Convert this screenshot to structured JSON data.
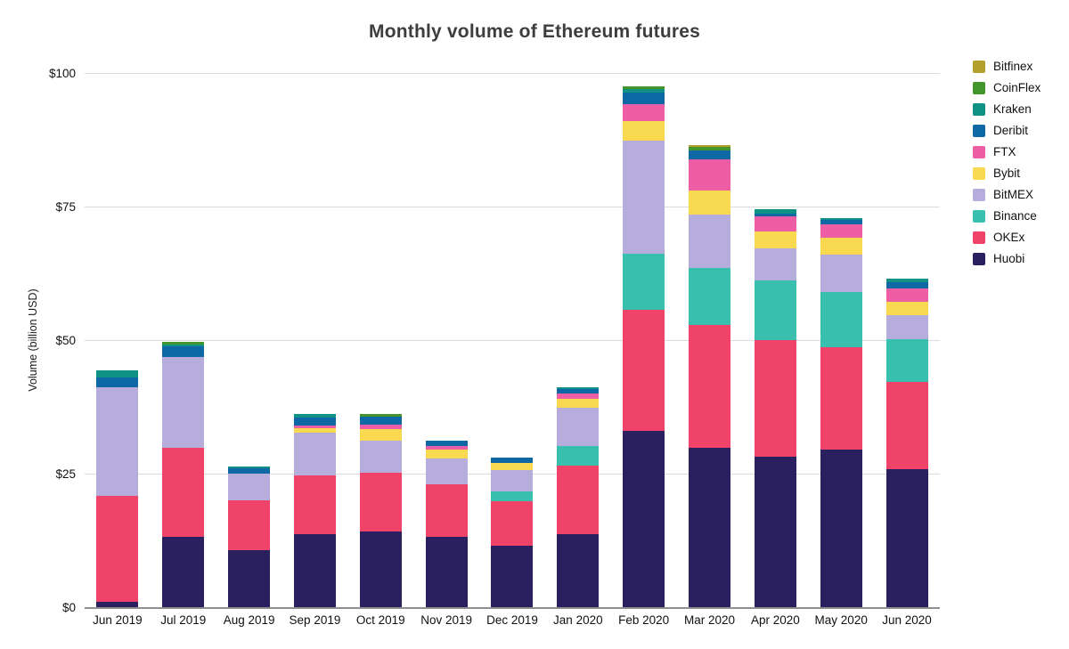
{
  "chart_data": {
    "type": "bar",
    "stacked": true,
    "title": "Monthly volume of Ethereum futures",
    "xlabel": "",
    "ylabel": "Volume (billion USD)",
    "ylim": [
      0,
      100
    ],
    "grid": true,
    "legend_position": "right",
    "yticks": [
      {
        "label": "$0",
        "value": 0
      },
      {
        "label": "$25",
        "value": 25
      },
      {
        "label": "$50",
        "value": 50
      },
      {
        "label": "$75",
        "value": 75
      },
      {
        "label": "$100",
        "value": 100
      }
    ],
    "categories": [
      "Jun 2019",
      "Jul 2019",
      "Aug 2019",
      "Sep 2019",
      "Oct 2019",
      "Nov 2019",
      "Dec 2019",
      "Jan 2020",
      "Feb 2020",
      "Mar 2020",
      "Apr 2020",
      "May 2020",
      "Jun 2020"
    ],
    "series_note": "bottom-to-top stack order; values in billion USD",
    "series": [
      {
        "name": "Huobi",
        "color": "#2a2060",
        "values": [
          1.2,
          13.3,
          10.9,
          13.8,
          14.3,
          13.3,
          11.6,
          13.8,
          33.1,
          30.0,
          28.3,
          29.6,
          26.0
        ]
      },
      {
        "name": "OKEx",
        "color": "#f0436a",
        "values": [
          19.8,
          16.7,
          9.2,
          11.0,
          11.0,
          9.9,
          8.4,
          12.9,
          22.8,
          23.0,
          21.8,
          19.3,
          16.3
        ]
      },
      {
        "name": "Binance",
        "color": "#39bfae",
        "values": [
          0,
          0,
          0,
          0,
          0,
          0,
          1.8,
          3.7,
          10.4,
          10.7,
          11.2,
          10.3,
          8.0
        ]
      },
      {
        "name": "BitMEX",
        "color": "#b6addd",
        "values": [
          20.4,
          17.0,
          5.1,
          8.0,
          6.1,
          4.8,
          4.0,
          7.1,
          21.2,
          9.9,
          6.1,
          7.0,
          4.6
        ]
      },
      {
        "name": "Bybit",
        "color": "#f9d94f",
        "values": [
          0,
          0,
          0,
          0.8,
          2.1,
          1.7,
          1.4,
          1.7,
          3.6,
          4.5,
          3.1,
          3.1,
          2.5
        ]
      },
      {
        "name": "FTX",
        "color": "#ee5ea4",
        "values": [
          0,
          0,
          0,
          0.6,
          0.8,
          0.7,
          0,
          0.9,
          3.2,
          5.9,
          2.8,
          2.6,
          2.4
        ]
      },
      {
        "name": "Deribit",
        "color": "#0d68a5",
        "values": [
          1.8,
          2.0,
          0.9,
          1.4,
          1.6,
          1.0,
          1.0,
          0.9,
          2.2,
          1.7,
          0.6,
          0.7,
          1.2
        ]
      },
      {
        "name": "Kraken",
        "color": "#0f9284",
        "values": [
          1.3,
          0.3,
          0.4,
          0.8,
          0,
          0,
          0,
          0.4,
          0.6,
          0,
          0.7,
          0.4,
          0.6
        ]
      },
      {
        "name": "CoinFlex",
        "color": "#43962b",
        "values": [
          0,
          0.5,
          0,
          0,
          0.5,
          0,
          0,
          0,
          0.6,
          0.6,
          0,
          0,
          0
        ]
      },
      {
        "name": "Bitfinex",
        "color": "#b3a02c",
        "values": [
          0,
          0,
          0,
          0,
          0,
          0,
          0,
          0,
          0,
          0.4,
          0,
          0,
          0
        ]
      }
    ],
    "legend_order_top_to_bottom": [
      "Bitfinex",
      "CoinFlex",
      "Kraken",
      "Deribit",
      "FTX",
      "Bybit",
      "BitMEX",
      "Binance",
      "OKEx",
      "Huobi"
    ]
  }
}
